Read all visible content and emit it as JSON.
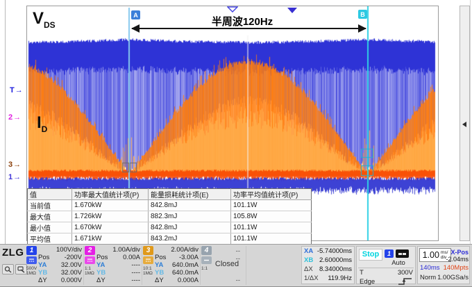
{
  "brand": "ZLG",
  "display": {
    "vds": {
      "base": "V",
      "sub": "DS"
    },
    "id": {
      "base": "I",
      "sub": "D"
    },
    "halfwave_label": "半周波120Hz",
    "cursor_a": "A",
    "cursor_b": "B",
    "left_markers": {
      "trigger": "T",
      "ch2": "2",
      "ch3": "3",
      "ch1": "1"
    }
  },
  "measure_table": {
    "headers": [
      "值",
      "功率最大值统计项(P)",
      "能量损耗统计项(E)",
      "功率平均值统计项(P)"
    ],
    "rows": [
      [
        "当前值",
        "1.670kW",
        "842.8mJ",
        "101.1W"
      ],
      [
        "最大值",
        "1.726kW",
        "882.3mJ",
        "105.8W"
      ],
      [
        "最小值",
        "1.670kW",
        "842.8mJ",
        "101.1W"
      ],
      [
        "平均值",
        "1.671kW",
        "843.2mJ",
        "101.1W"
      ]
    ]
  },
  "channels": [
    {
      "num": "1",
      "scale": "100V/div",
      "pos_label": "Pos",
      "pos": "-200V",
      "ya_label": "YA",
      "ya": "32.00V",
      "yb_label": "YB",
      "yb": "32.00V",
      "dy_label": "ΔY",
      "dy": "0.000V",
      "probe": "500V",
      "impedance": "1MΩ"
    },
    {
      "num": "2",
      "scale": "1.00A/div",
      "pos_label": "Pos",
      "pos": "0.00A",
      "ya_label": "YA",
      "ya": "----",
      "yb_label": "YB",
      "yb": "----",
      "dy_label": "ΔY",
      "dy": "----",
      "probe": "1:1",
      "impedance": "1MΩ"
    },
    {
      "num": "3",
      "scale": "2.00A/div",
      "pos_label": "Pos",
      "pos": "-3.00A",
      "ya_label": "YA",
      "ya": "640.0mA",
      "yb_label": "YB",
      "yb": "640.0mA",
      "dy_label": "ΔY",
      "dy": "0.000A",
      "probe": "10:1",
      "impedance": "1MΩ"
    },
    {
      "num": "4",
      "scale": "--",
      "pos": "--",
      "status": "Closed",
      "extra": "--",
      "probe": "1:1",
      "impedance": ""
    }
  ],
  "cursor_readout": {
    "xa_label": "XA",
    "xa": "-5.74000ms",
    "xb_label": "XB",
    "xb": "2.60000ms",
    "dx_label": "ΔX",
    "dx": "8.34000ms",
    "inv_label": "1/ΔX",
    "inv": "119.9Hz"
  },
  "trigger": {
    "state": "Stop",
    "source": "1",
    "mode": "Auto",
    "level_label": "T",
    "level": "300V",
    "type": "Edge"
  },
  "timebase": {
    "scale": "1.00",
    "unit_top": "ms/",
    "unit_bot": "div",
    "xpos_label": "X-Pos",
    "xpos": "-2.04ms",
    "record_time": "140ms",
    "record_depth": "140Mpts",
    "acq_mode": "Norm",
    "sample_rate": "1.00GSa/s"
  },
  "colors": {
    "vds_blue": "#3f44dc",
    "vds_blue_dark": "#2e33d6",
    "id_orange": "#ff7d0e",
    "id_orange_light": "#ffae4a",
    "id_red_band": "#f84800",
    "bottom_blue": "#3338d2",
    "cursor_a": "#85c8ee",
    "cursor_b": "#2fd0e4",
    "trigger_marker": "#382fd2",
    "ch1": "#2443ea",
    "ch2": "#e41fe4",
    "ch3": "#e0991a",
    "ch4": "#97a3ae"
  }
}
